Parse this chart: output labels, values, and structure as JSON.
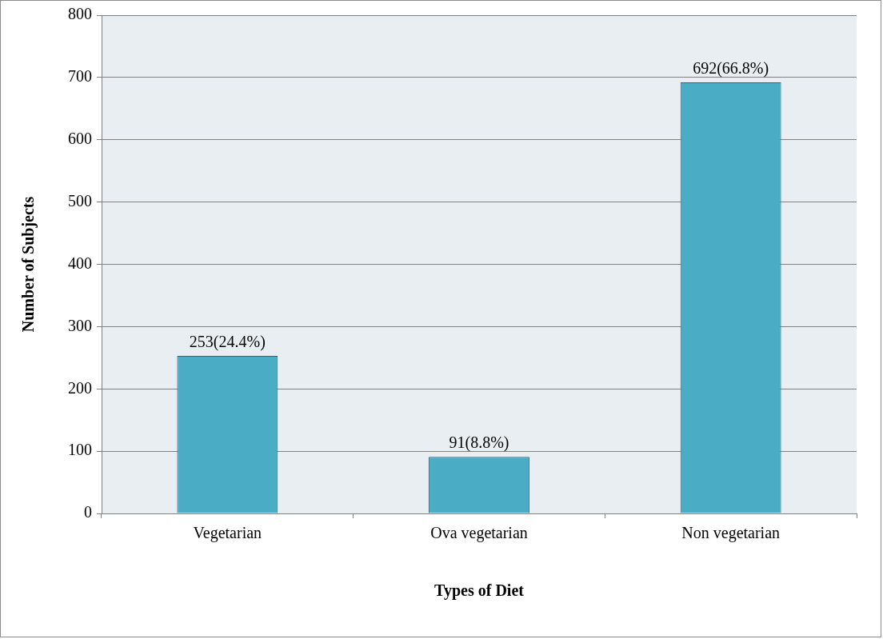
{
  "chart_data": {
    "type": "bar",
    "xlabel": "Types of Diet",
    "ylabel": "Number of Subjects",
    "categories": [
      "Vegetarian",
      "Ova vegetarian",
      "Non vegetarian"
    ],
    "values": [
      253,
      91,
      692
    ],
    "value_labels": [
      "253(24.4%)",
      "91(8.8%)",
      "692(66.8%)"
    ],
    "color": "#4bacc6",
    "ylim": [
      0,
      800
    ],
    "yticks": [
      0,
      100,
      200,
      300,
      400,
      500,
      600,
      700,
      800
    ],
    "grid": "y"
  }
}
